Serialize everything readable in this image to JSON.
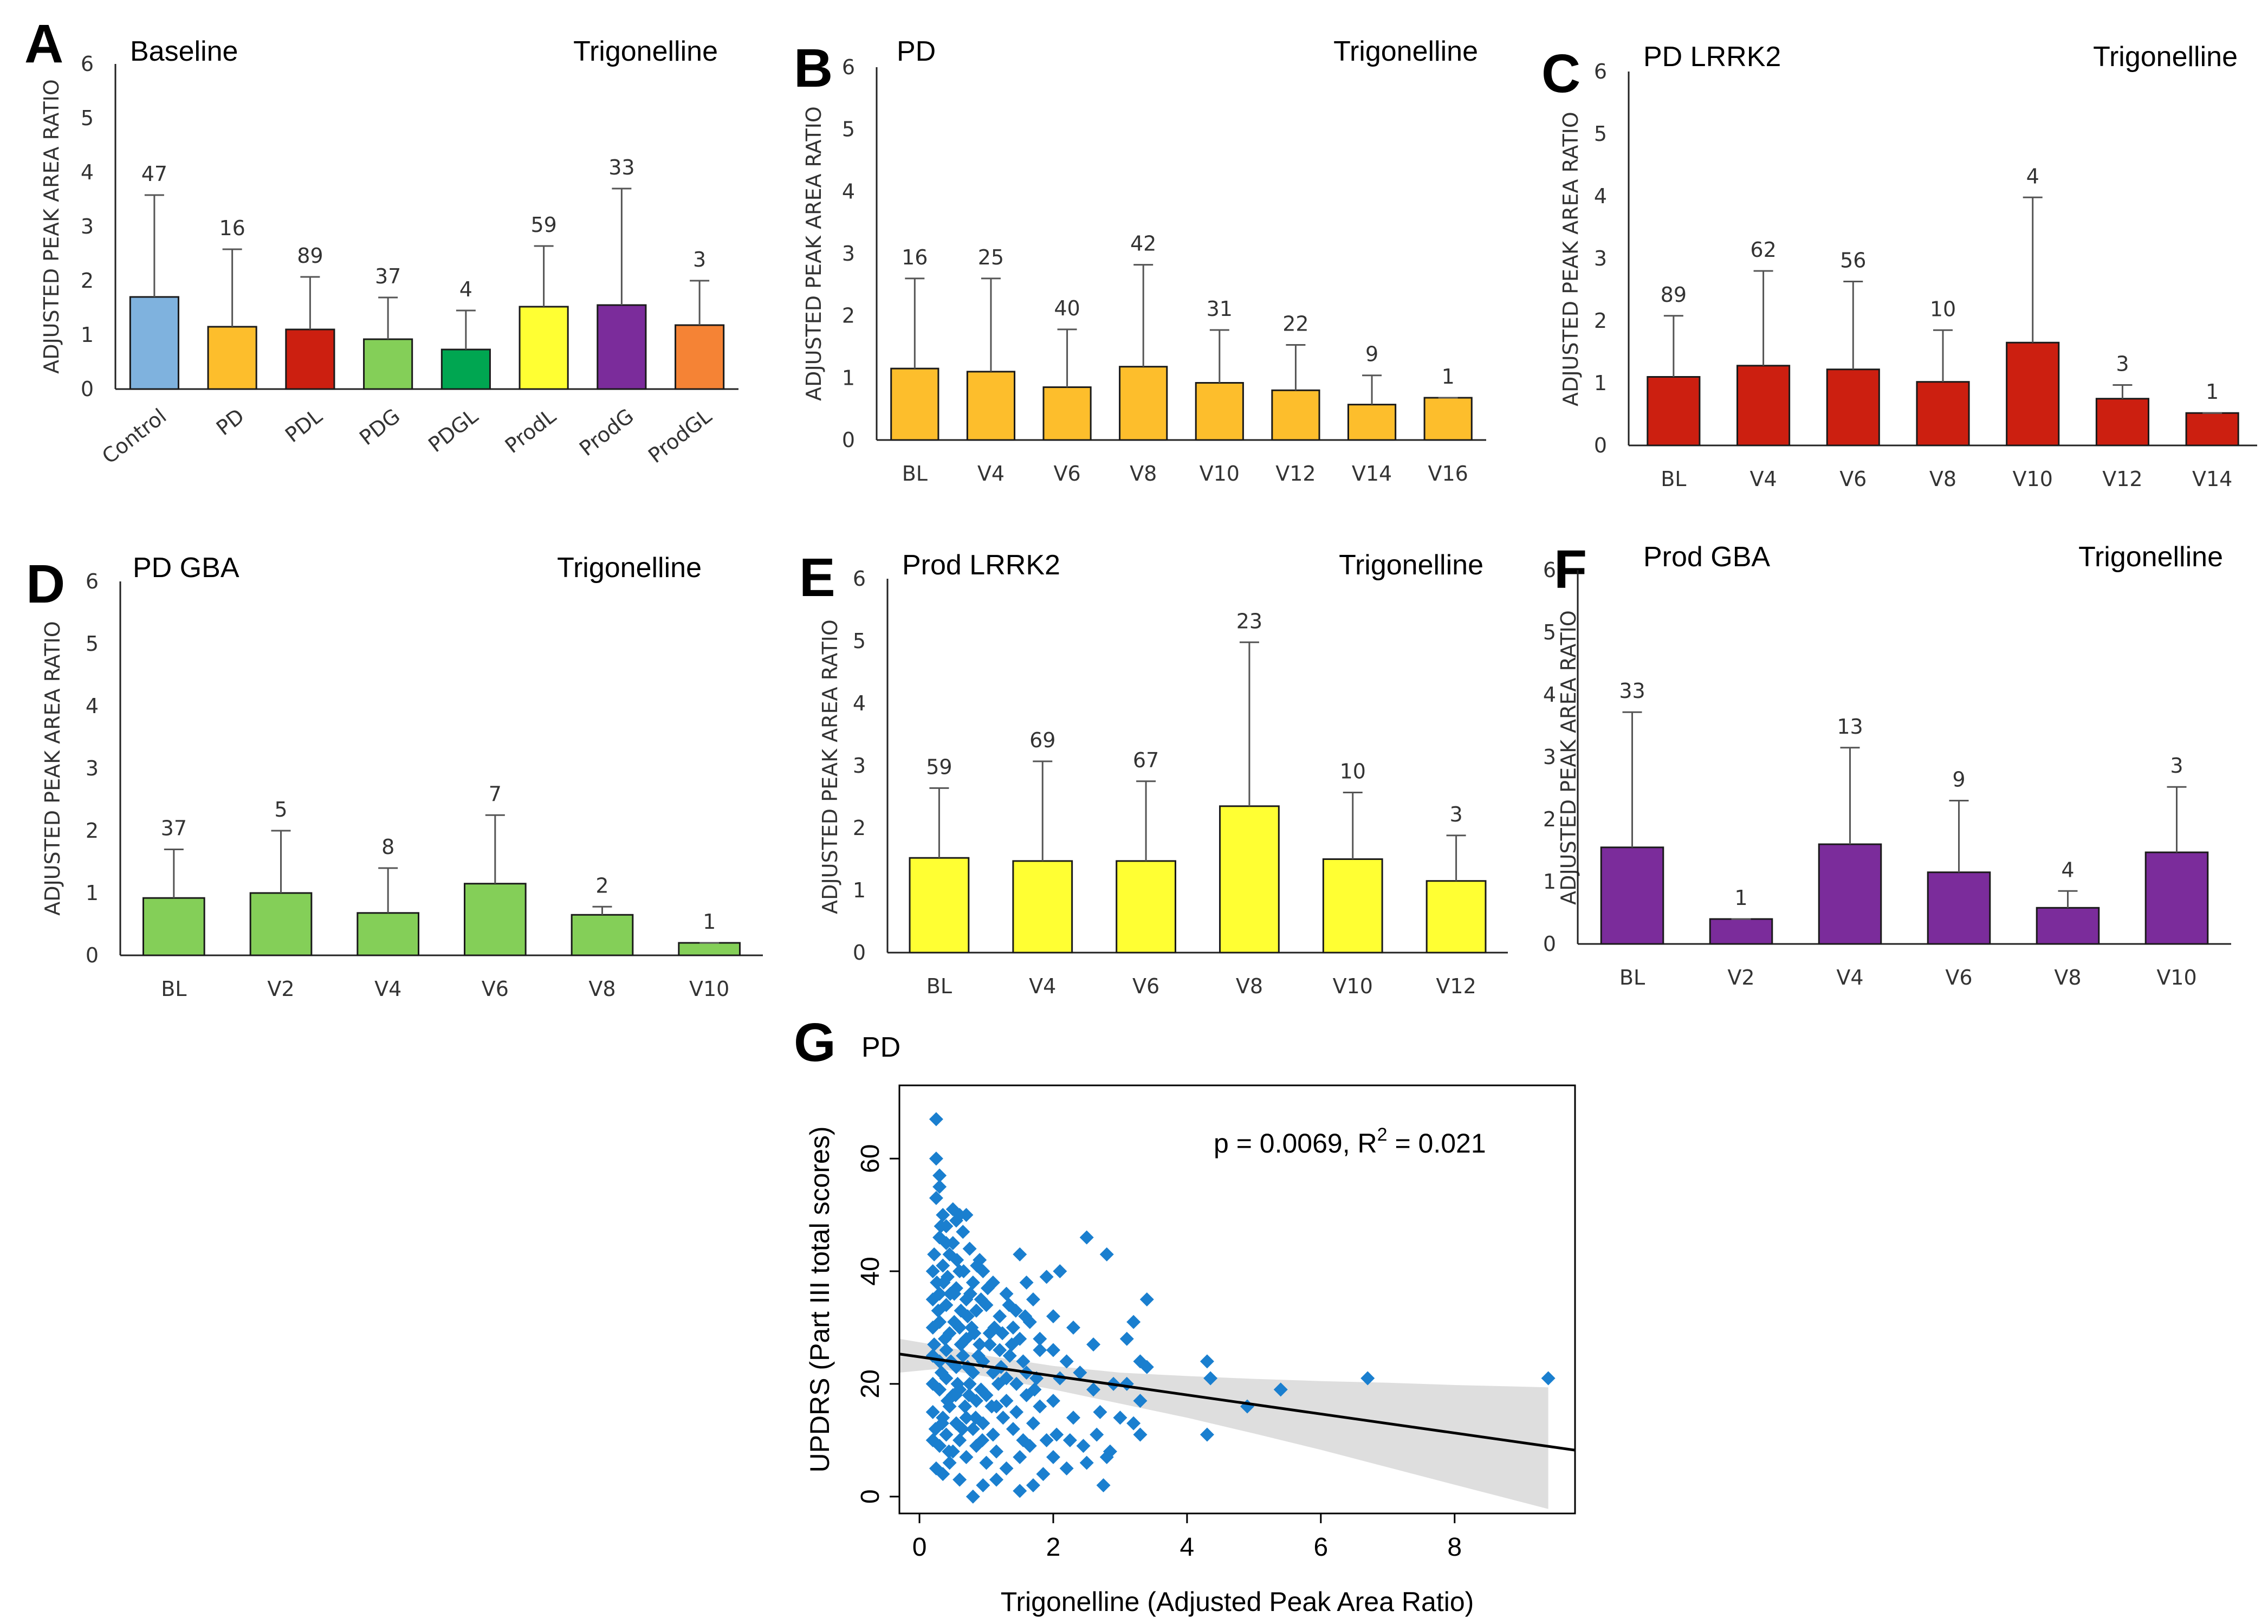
{
  "chart_data": [
    {
      "panel": "A",
      "type": "bar",
      "title": "Baseline",
      "metabolite": "Trigonelline",
      "ylabel": "ADJUSTED PEAK AREA RATIO",
      "ylim": [
        0,
        6
      ],
      "yticks": [
        "0",
        "1",
        "2",
        "3",
        "4",
        "5",
        "6"
      ],
      "xtick_rotated": true,
      "categories": [
        "Control",
        "PD",
        "PDL",
        "PDG",
        "PDGL",
        "ProdL",
        "ProdG",
        "ProdGL"
      ],
      "values": [
        1.7,
        1.15,
        1.1,
        0.92,
        0.73,
        1.52,
        1.55,
        1.18
      ],
      "errors": [
        1.88,
        1.43,
        0.97,
        0.77,
        0.72,
        1.12,
        2.15,
        0.82
      ],
      "n_labels": [
        "47",
        "16",
        "89",
        "37",
        "4",
        "59",
        "33",
        "3"
      ],
      "colors": [
        "#7fb2de",
        "#fdbe2c",
        "#cc1f10",
        "#84cf58",
        "#00a651",
        "#ffff33",
        "#7b2c9b",
        "#f58335"
      ]
    },
    {
      "panel": "B",
      "type": "bar",
      "title": "PD",
      "metabolite": "Trigonelline",
      "ylabel": "ADJUSTED PEAK AREA RATIO",
      "ylim": [
        0,
        6
      ],
      "yticks": [
        "0",
        "1",
        "2",
        "3",
        "4",
        "5",
        "6"
      ],
      "xtick_rotated": false,
      "categories": [
        "BL",
        "V4",
        "V6",
        "V8",
        "V10",
        "V12",
        "V14",
        "V16"
      ],
      "values": [
        1.15,
        1.1,
        0.85,
        1.18,
        0.92,
        0.8,
        0.57,
        0.68
      ],
      "errors": [
        1.45,
        1.5,
        0.93,
        1.64,
        0.85,
        0.73,
        0.47,
        0.0
      ],
      "n_labels": [
        "16",
        "25",
        "40",
        "42",
        "31",
        "22",
        "9",
        "1"
      ],
      "colors": [
        "#fdbe2c"
      ]
    },
    {
      "panel": "C",
      "type": "bar",
      "title": "PD LRRK2",
      "metabolite": "Trigonelline",
      "ylabel": "ADJUSTED PEAK AREA RATIO",
      "ylim": [
        0,
        6
      ],
      "yticks": [
        "0",
        "1",
        "2",
        "3",
        "4",
        "5",
        "6"
      ],
      "xtick_rotated": false,
      "categories": [
        "BL",
        "V4",
        "V6",
        "V8",
        "V10",
        "V12",
        "V14"
      ],
      "values": [
        1.1,
        1.28,
        1.22,
        1.02,
        1.65,
        0.75,
        0.52
      ],
      "errors": [
        0.98,
        1.52,
        1.41,
        0.83,
        2.33,
        0.22,
        0.0
      ],
      "n_labels": [
        "89",
        "62",
        "56",
        "10",
        "4",
        "3",
        "1"
      ],
      "colors": [
        "#cc1f10"
      ]
    },
    {
      "panel": "D",
      "type": "bar",
      "title": "PD GBA",
      "metabolite": "Trigonelline",
      "ylabel": "ADJUSTED PEAK AREA RATIO",
      "ylim": [
        0,
        6
      ],
      "yticks": [
        "0",
        "1",
        "2",
        "3",
        "4",
        "5",
        "6"
      ],
      "xtick_rotated": false,
      "categories": [
        "BL",
        "V2",
        "V4",
        "V6",
        "V8",
        "V10"
      ],
      "values": [
        0.92,
        1.0,
        0.68,
        1.15,
        0.65,
        0.2
      ],
      "errors": [
        0.78,
        1.0,
        0.72,
        1.1,
        0.13,
        0.0
      ],
      "n_labels": [
        "37",
        "5",
        "8",
        "7",
        "2",
        "1"
      ],
      "colors": [
        "#84cf58"
      ]
    },
    {
      "panel": "E",
      "type": "bar",
      "title": "Prod LRRK2",
      "metabolite": "Trigonelline",
      "ylabel": "ADJUSTED PEAK AREA RATIO",
      "ylim": [
        0,
        6
      ],
      "yticks": [
        "0",
        "1",
        "2",
        "3",
        "4",
        "5",
        "6"
      ],
      "xtick_rotated": false,
      "categories": [
        "BL",
        "V4",
        "V6",
        "V8",
        "V10",
        "V12"
      ],
      "values": [
        1.52,
        1.47,
        1.47,
        2.35,
        1.5,
        1.15
      ],
      "errors": [
        1.12,
        1.6,
        1.28,
        2.63,
        1.07,
        0.73
      ],
      "n_labels": [
        "59",
        "69",
        "67",
        "23",
        "10",
        "3"
      ],
      "colors": [
        "#ffff33"
      ]
    },
    {
      "panel": "F",
      "type": "bar",
      "title": "Prod GBA",
      "metabolite": "Trigonelline",
      "ylabel": "ADJUSTED PEAK AREA RATIO",
      "ylim": [
        0,
        6
      ],
      "yticks": [
        "0",
        "1",
        "2",
        "3",
        "4",
        "5",
        "6"
      ],
      "xtick_rotated": false,
      "categories": [
        "BL",
        "V2",
        "V4",
        "V6",
        "V8",
        "V10"
      ],
      "values": [
        1.55,
        0.4,
        1.6,
        1.15,
        0.58,
        1.47
      ],
      "errors": [
        2.17,
        0.0,
        1.55,
        1.15,
        0.27,
        1.05
      ],
      "n_labels": [
        "33",
        "1",
        "13",
        "9",
        "4",
        "3"
      ],
      "colors": [
        "#7b2c9b"
      ]
    },
    {
      "panel": "G",
      "type": "scatter",
      "title": "PD",
      "xlabel": "Trigonelline (Adjusted Peak Area Ratio)",
      "ylabel": "UPDRS (Part III total scores)",
      "annotation_prefix": "p = 0.0069, R",
      "annotation_sup": "2",
      "annotation_suffix": " = 0.021",
      "xlim": [
        -0.3,
        9.8
      ],
      "ylim": [
        -3,
        73
      ],
      "xticks": [
        0,
        2,
        4,
        6,
        8
      ],
      "xtick_labels": [
        "0",
        "2",
        "4",
        "6",
        "8"
      ],
      "yticks": [
        0,
        20,
        40,
        60
      ],
      "ytick_labels": [
        "0",
        "20",
        "40",
        "60"
      ],
      "regression": {
        "intercept": 24.8,
        "slope": -1.69
      },
      "ci_band": {
        "x": [
          -0.3,
          0.3,
          1.0,
          2.0,
          3.0,
          4.0,
          5.0,
          6.0,
          7.0,
          8.0,
          9.4
        ],
        "lower": [
          22.0,
          22.7,
          21.3,
          19.0,
          16.5,
          14.0,
          11.2,
          8.3,
          5.2,
          2.1,
          -2.2
        ],
        "upper": [
          28.0,
          26.8,
          25.0,
          23.2,
          22.0,
          21.4,
          20.9,
          20.5,
          20.2,
          19.8,
          19.4
        ]
      },
      "marker_color": "#1a7fcf",
      "points": [
        [
          0.25,
          67
        ],
        [
          0.25,
          60
        ],
        [
          0.3,
          57
        ],
        [
          0.25,
          53
        ],
        [
          0.3,
          55
        ],
        [
          0.35,
          50
        ],
        [
          0.4,
          48
        ],
        [
          0.5,
          51
        ],
        [
          0.55,
          49
        ],
        [
          0.6,
          50
        ],
        [
          0.7,
          50
        ],
        [
          0.3,
          46
        ],
        [
          0.4,
          45
        ],
        [
          0.5,
          45
        ],
        [
          0.65,
          47
        ],
        [
          0.75,
          44
        ],
        [
          0.9,
          42
        ],
        [
          0.2,
          40
        ],
        [
          0.35,
          41
        ],
        [
          0.45,
          43
        ],
        [
          0.6,
          40
        ],
        [
          0.8,
          38
        ],
        [
          0.95,
          40
        ],
        [
          1.1,
          38
        ],
        [
          1.3,
          36
        ],
        [
          1.5,
          43
        ],
        [
          1.6,
          38
        ],
        [
          1.9,
          39
        ],
        [
          2.1,
          40
        ],
        [
          2.5,
          46
        ],
        [
          2.8,
          43
        ],
        [
          0.2,
          35
        ],
        [
          0.3,
          36
        ],
        [
          0.4,
          34
        ],
        [
          0.55,
          37
        ],
        [
          0.7,
          35
        ],
        [
          0.85,
          33
        ],
        [
          1.0,
          34
        ],
        [
          1.2,
          32
        ],
        [
          1.4,
          30
        ],
        [
          1.7,
          35
        ],
        [
          1.8,
          28
        ],
        [
          2.0,
          32
        ],
        [
          2.3,
          30
        ],
        [
          2.6,
          27
        ],
        [
          3.1,
          28
        ],
        [
          3.4,
          35
        ],
        [
          0.2,
          30
        ],
        [
          0.3,
          31
        ],
        [
          0.45,
          29
        ],
        [
          0.6,
          30
        ],
        [
          0.7,
          28
        ],
        [
          0.9,
          27
        ],
        [
          1.05,
          29
        ],
        [
          1.2,
          26
        ],
        [
          1.35,
          25
        ],
        [
          1.5,
          28
        ],
        [
          1.65,
          31
        ],
        [
          1.8,
          26
        ],
        [
          2.0,
          26
        ],
        [
          2.2,
          24
        ],
        [
          2.4,
          22
        ],
        [
          3.2,
          31
        ],
        [
          3.3,
          24
        ],
        [
          3.4,
          23
        ],
        [
          4.3,
          24
        ],
        [
          0.2,
          25
        ],
        [
          0.3,
          24
        ],
        [
          0.4,
          26
        ],
        [
          0.55,
          23
        ],
        [
          0.65,
          25
        ],
        [
          0.8,
          22
        ],
        [
          0.95,
          24
        ],
        [
          1.1,
          22
        ],
        [
          1.3,
          21
        ],
        [
          1.45,
          20
        ],
        [
          1.6,
          22
        ],
        [
          1.75,
          21
        ],
        [
          2.1,
          21
        ],
        [
          2.6,
          19
        ],
        [
          2.9,
          20
        ],
        [
          3.1,
          20
        ],
        [
          3.3,
          17
        ],
        [
          4.35,
          21
        ],
        [
          4.9,
          16
        ],
        [
          5.4,
          19
        ],
        [
          6.7,
          21
        ],
        [
          9.4,
          21
        ],
        [
          0.2,
          20
        ],
        [
          0.3,
          19
        ],
        [
          0.4,
          21
        ],
        [
          0.5,
          18
        ],
        [
          0.6,
          19
        ],
        [
          0.75,
          20
        ],
        [
          0.85,
          17
        ],
        [
          1.0,
          18
        ],
        [
          1.15,
          16
        ],
        [
          1.3,
          17
        ],
        [
          1.45,
          15
        ],
        [
          1.6,
          18
        ],
        [
          1.8,
          16
        ],
        [
          2.0,
          17
        ],
        [
          2.3,
          14
        ],
        [
          2.7,
          15
        ],
        [
          3.0,
          14
        ],
        [
          0.2,
          15
        ],
        [
          0.35,
          14
        ],
        [
          0.45,
          16
        ],
        [
          0.55,
          13
        ],
        [
          0.7,
          14
        ],
        [
          0.8,
          12
        ],
        [
          0.95,
          13
        ],
        [
          1.1,
          11
        ],
        [
          1.25,
          14
        ],
        [
          1.4,
          12
        ],
        [
          1.55,
          10
        ],
        [
          1.7,
          13
        ],
        [
          1.9,
          10
        ],
        [
          2.05,
          11
        ],
        [
          2.25,
          10
        ],
        [
          2.45,
          9
        ],
        [
          2.65,
          11
        ],
        [
          2.85,
          8
        ],
        [
          3.2,
          13
        ],
        [
          3.3,
          11
        ],
        [
          4.3,
          11
        ],
        [
          0.2,
          10
        ],
        [
          0.3,
          9
        ],
        [
          0.4,
          11
        ],
        [
          0.5,
          8
        ],
        [
          0.6,
          10
        ],
        [
          0.7,
          7
        ],
        [
          0.85,
          9
        ],
        [
          1.0,
          6
        ],
        [
          1.15,
          8
        ],
        [
          1.3,
          5
        ],
        [
          1.5,
          7
        ],
        [
          1.65,
          9
        ],
        [
          1.85,
          4
        ],
        [
          2.0,
          7
        ],
        [
          2.2,
          5
        ],
        [
          2.5,
          6
        ],
        [
          2.8,
          7
        ],
        [
          0.25,
          5
        ],
        [
          0.35,
          4
        ],
        [
          0.45,
          6
        ],
        [
          0.6,
          3
        ],
        [
          0.8,
          0
        ],
        [
          0.95,
          2
        ],
        [
          1.15,
          3
        ],
        [
          1.5,
          1
        ],
        [
          1.7,
          2
        ],
        [
          2.75,
          2
        ],
        [
          0.22,
          27
        ],
        [
          0.28,
          33
        ],
        [
          0.33,
          22
        ],
        [
          0.38,
          28
        ],
        [
          0.42,
          17
        ],
        [
          0.47,
          24
        ],
        [
          0.52,
          31
        ],
        [
          0.57,
          20
        ],
        [
          0.62,
          27
        ],
        [
          0.68,
          16
        ],
        [
          0.72,
          23
        ],
        [
          0.78,
          30
        ],
        [
          0.88,
          25
        ],
        [
          0.92,
          19
        ],
        [
          1.05,
          27
        ],
        [
          1.22,
          23
        ],
        [
          1.38,
          27
        ],
        [
          1.55,
          24
        ],
        [
          1.72,
          19
        ],
        [
          0.24,
          12
        ],
        [
          0.34,
          13
        ],
        [
          0.44,
          8
        ],
        [
          0.54,
          18
        ],
        [
          0.64,
          12
        ],
        [
          0.74,
          18
        ],
        [
          0.84,
          14
        ],
        [
          0.94,
          10
        ],
        [
          1.08,
          16
        ],
        [
          1.18,
          20
        ],
        [
          0.26,
          38
        ],
        [
          0.36,
          38
        ],
        [
          0.46,
          36
        ],
        [
          0.56,
          42
        ],
        [
          0.66,
          40
        ],
        [
          0.76,
          36
        ],
        [
          0.86,
          41
        ],
        [
          0.22,
          43
        ],
        [
          0.32,
          48
        ],
        [
          0.42,
          39
        ],
        [
          0.52,
          36
        ],
        [
          0.62,
          33
        ],
        [
          0.72,
          32
        ],
        [
          0.82,
          29
        ],
        [
          0.92,
          35
        ],
        [
          1.02,
          37
        ],
        [
          1.12,
          30
        ],
        [
          1.24,
          29
        ],
        [
          1.34,
          34
        ],
        [
          1.44,
          33
        ],
        [
          1.58,
          32
        ]
      ]
    }
  ]
}
